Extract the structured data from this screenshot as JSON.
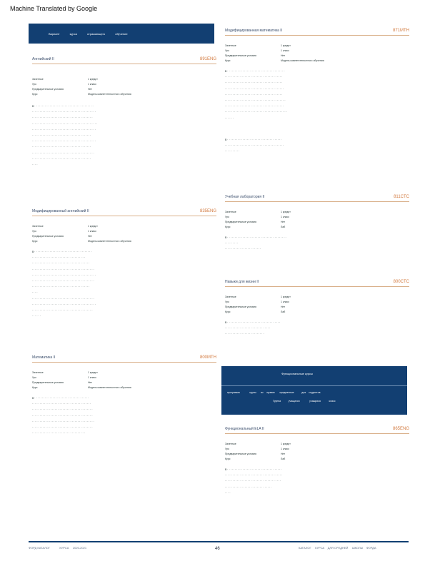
{
  "header": {
    "machine_translated": "Machine Translated by Google"
  },
  "banner_top": {
    "items": [
      "Вариант",
      "курса",
      "отражающего",
      "обучение"
    ]
  },
  "left_column": [
    {
      "title": "Английский",
      "sub": "II",
      "code": "891ENG",
      "meta": [
        {
          "k": "Зачетные",
          "v": "1 кредит"
        },
        {
          "k": "Уро",
          "v": "1 класс"
        },
        {
          "k": "Предварительные условия",
          "v": "Нет"
        },
        {
          "k": "Курс",
          "v": "Модель компетентностного обучения"
        }
      ],
      "lines": 12
    },
    {
      "title": "Модифицированный",
      "sub": "английский II",
      "code": "835ENG",
      "meta": [
        {
          "k": "Зачетные",
          "v": "1 кредит"
        },
        {
          "k": "Уро",
          "v": "1 класс"
        },
        {
          "k": "Предварительные условия",
          "v": "Нет"
        },
        {
          "k": "Курс",
          "v": "Модель компетентностного обучения"
        }
      ],
      "lines": 14
    },
    {
      "title": "Математика",
      "sub": "II",
      "code": "800MTH",
      "meta": [
        {
          "k": "Зачетные",
          "v": "1 кредит"
        },
        {
          "k": "Уро",
          "v": "1 класс"
        },
        {
          "k": "Предварительные условия",
          "v": "Нет"
        },
        {
          "k": "Курс",
          "v": "Модель компетентностного обучения"
        }
      ],
      "lines": 9
    }
  ],
  "right_column": [
    {
      "title": "Модифицированная",
      "sub": "математика II",
      "code": "871MTH",
      "meta": [
        {
          "k": "Зачетные",
          "v": "1 кредит"
        },
        {
          "k": "Уро",
          "v": "1 класс"
        },
        {
          "k": "Предварительные условия",
          "v": "Нет"
        },
        {
          "k": "Курс",
          "v": "Модель компетентностного обучения"
        }
      ],
      "lines": 13
    },
    {
      "title": "Учебная",
      "sub": "лаборатория II",
      "code": "811CTC",
      "meta": [
        {
          "k": "Зачетные",
          "v": "1 кредит"
        },
        {
          "k": "Уро",
          "v": "1 класс"
        },
        {
          "k": "Предварительные условия",
          "v": "Нет"
        },
        {
          "k": "Курс",
          "v": "Лаб"
        }
      ],
      "lines": 3
    },
    {
      "title": "Навыки",
      "sub": "для жизни II",
      "code": "800CTC",
      "meta": [
        {
          "k": "Зачетные",
          "v": "1 кредит"
        },
        {
          "k": "Уро",
          "v": "1 класс"
        },
        {
          "k": "Предварительные условия",
          "v": "Нет"
        },
        {
          "k": "Курс",
          "v": "Лаб"
        }
      ],
      "lines": 3
    }
  ],
  "banner_mid": {
    "title": "Функциональные курсы",
    "line1": [
      "программа",
      "курсы",
      "по",
      "правах",
      "предметные",
      "для",
      "студентов"
    ],
    "line2": [
      "Группа",
      "учащихся",
      "учащихся",
      "класс"
    ]
  },
  "last_course": {
    "title": "Функциональный",
    "sub": "ELA II",
    "code": "865ENG",
    "meta": [
      {
        "k": "Зачетные",
        "v": "1 кредит"
      },
      {
        "k": "Уро",
        "v": "1 класс"
      },
      {
        "k": "Предварительные условия",
        "v": "Нет"
      },
      {
        "k": "Курс",
        "v": "Лаб"
      }
    ],
    "lines": 6
  },
  "footer": {
    "left": [
      "ФОРД КАТАЛОГ",
      "КУРСА",
      "2020-2021"
    ],
    "page": "46",
    "right": [
      "КАТАЛОГ",
      "КУРСА",
      "ДЛЯ СРЕДНЕЙ",
      "ШКОЛЫ",
      "ФОРДА"
    ]
  }
}
